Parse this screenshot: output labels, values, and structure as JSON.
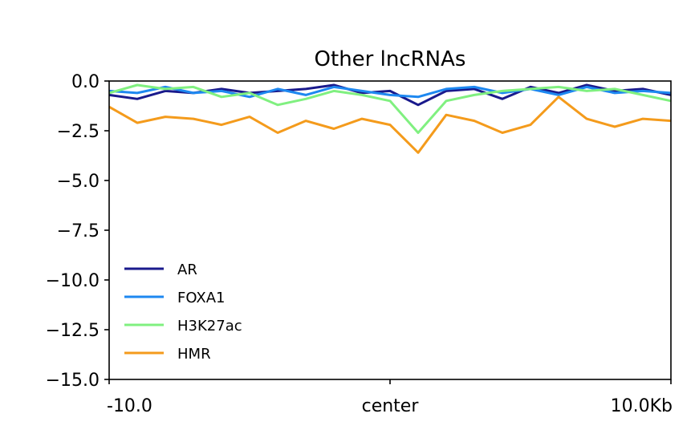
{
  "chart_data": {
    "type": "line",
    "title": "Other lncRNAs",
    "xlabel": "",
    "ylabel": "",
    "x_ticks": [
      "-10.0",
      "center",
      "10.0Kb"
    ],
    "x_range": [
      -10,
      10
    ],
    "ylim": [
      -15.0,
      0.0
    ],
    "y_ticks": [
      0.0,
      -2.5,
      -5.0,
      -7.5,
      -10.0,
      -12.5,
      -15.0
    ],
    "y_tick_labels": [
      "0.0",
      "−2.5",
      "−5.0",
      "−7.5",
      "−10.0",
      "−12.5",
      "−15.0"
    ],
    "grid": false,
    "legend_position": "lower-left",
    "x": [
      -10,
      -9,
      -8,
      -7,
      -6,
      -5,
      -4,
      -3,
      -2,
      -1,
      0,
      1,
      2,
      3,
      4,
      5,
      6,
      7,
      8,
      9,
      10
    ],
    "series": [
      {
        "name": "AR",
        "color": "#1a1a8c",
        "values": [
          -0.7,
          -0.9,
          -0.5,
          -0.6,
          -0.4,
          -0.6,
          -0.5,
          -0.4,
          -0.2,
          -0.6,
          -0.5,
          -1.2,
          -0.5,
          -0.4,
          -0.9,
          -0.3,
          -0.6,
          -0.2,
          -0.5,
          -0.4,
          -0.7
        ]
      },
      {
        "name": "FOXA1",
        "color": "#1e88f0",
        "values": [
          -0.5,
          -0.6,
          -0.3,
          -0.6,
          -0.5,
          -0.8,
          -0.4,
          -0.7,
          -0.3,
          -0.5,
          -0.7,
          -0.8,
          -0.4,
          -0.3,
          -0.6,
          -0.4,
          -0.7,
          -0.3,
          -0.6,
          -0.5,
          -0.6
        ]
      },
      {
        "name": "H3K27ac",
        "color": "#80f080",
        "values": [
          -0.6,
          -0.2,
          -0.4,
          -0.3,
          -0.8,
          -0.6,
          -1.2,
          -0.9,
          -0.5,
          -0.7,
          -1.0,
          -2.6,
          -1.0,
          -0.7,
          -0.5,
          -0.4,
          -0.3,
          -0.5,
          -0.4,
          -0.7,
          -1.0
        ]
      },
      {
        "name": "HMR",
        "color": "#f49b1c",
        "values": [
          -1.3,
          -2.1,
          -1.8,
          -1.9,
          -2.2,
          -1.8,
          -2.6,
          -2.0,
          -2.4,
          -1.9,
          -2.2,
          -3.6,
          -1.7,
          -2.0,
          -2.6,
          -2.2,
          -0.8,
          -1.9,
          -2.3,
          -1.9,
          -2.0
        ]
      }
    ]
  }
}
